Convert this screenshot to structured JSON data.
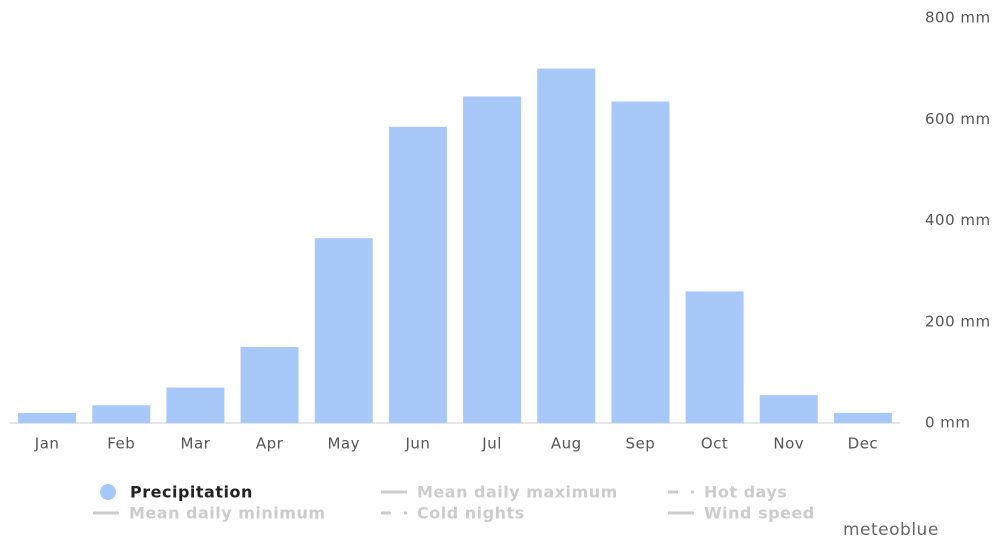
{
  "chart_data": {
    "type": "bar",
    "categories": [
      "Jan",
      "Feb",
      "Mar",
      "Apr",
      "May",
      "Jun",
      "Jul",
      "Aug",
      "Sep",
      "Oct",
      "Nov",
      "Dec"
    ],
    "series": [
      {
        "name": "Precipitation",
        "color": "#a8c8fa",
        "values": [
          20,
          35,
          70,
          150,
          365,
          585,
          645,
          700,
          635,
          260,
          55,
          20
        ]
      }
    ],
    "inactive_legend": [
      "Mean daily maximum",
      "Hot days",
      "Mean daily minimum",
      "Cold nights",
      "Wind speed"
    ],
    "inactive_color": "#cccccc",
    "ylim": [
      0,
      800
    ],
    "yticks": [
      {
        "value": 0,
        "label": "0 mm"
      },
      {
        "value": 200,
        "label": "200 mm"
      },
      {
        "value": 400,
        "label": "400 mm"
      },
      {
        "value": 600,
        "label": "600 mm"
      },
      {
        "value": 800,
        "label": "800 mm"
      }
    ],
    "credit": "meteoblue"
  }
}
